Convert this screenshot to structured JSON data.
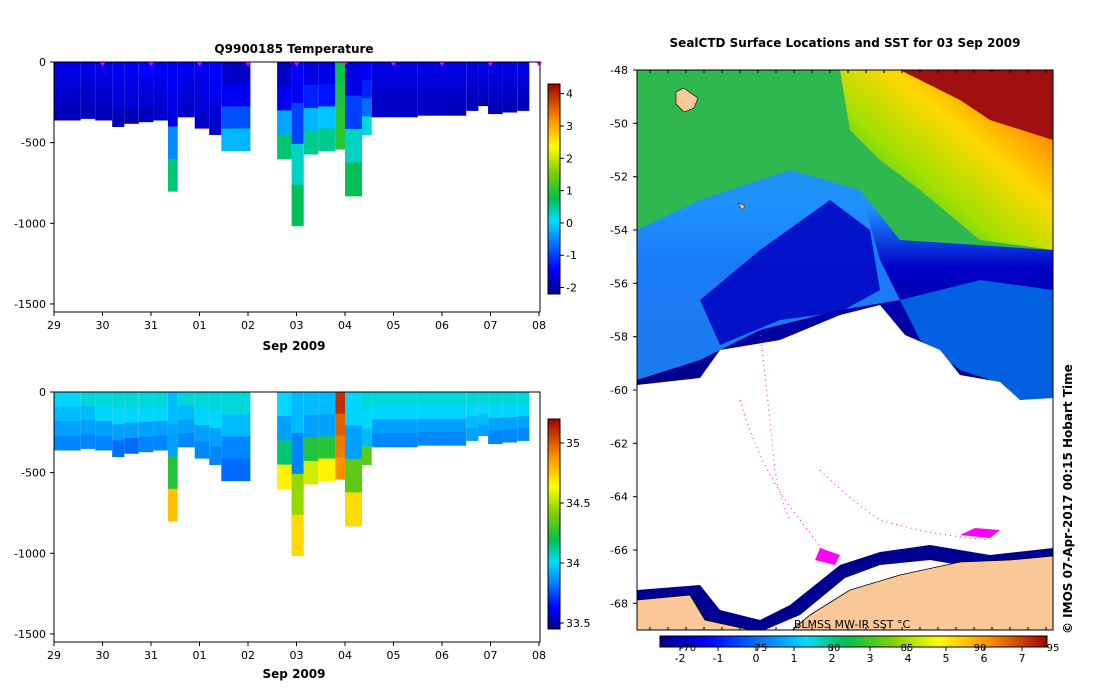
{
  "chart_data": [
    {
      "type": "heatmap",
      "title": "Q9900185  Temperature",
      "xlabel": "Sep 2009",
      "x_tick_labels": [
        "29",
        "30",
        "31",
        "01",
        "02",
        "03",
        "04",
        "05",
        "06",
        "07",
        "08"
      ],
      "y_tick_labels": [
        "0",
        "-500",
        "-1000",
        "-1500"
      ],
      "y_ticks": [
        0,
        -500,
        -1000,
        -1500
      ],
      "ylim": [
        -1550,
        0
      ],
      "colorbar_ticks": [
        4,
        3,
        2,
        1,
        0,
        -1,
        -2
      ],
      "colorbar_range": [
        -2.2,
        4.3
      ],
      "profile_markers_days": [
        1,
        2,
        3,
        4,
        5,
        6,
        7,
        8,
        9,
        10
      ],
      "notes": "Cast columns indexed by day offset from Aug 29; values in deg C"
    },
    {
      "type": "heatmap",
      "title": "",
      "xlabel": "Sep 2009",
      "x_tick_labels": [
        "29",
        "30",
        "31",
        "01",
        "02",
        "03",
        "04",
        "05",
        "06",
        "07",
        "08"
      ],
      "y_tick_labels": [
        "0",
        "-500",
        "-1000",
        "-1500"
      ],
      "y_ticks": [
        0,
        -500,
        -1000,
        -1500
      ],
      "ylim": [
        -1550,
        0
      ],
      "colorbar_ticks": [
        "35",
        "34.5",
        "34",
        "33.5"
      ],
      "colorbar_range": [
        33.45,
        35.2
      ],
      "notes": "Salinity, cast columns indexed by day offset from Aug 29"
    },
    {
      "type": "heatmap",
      "title": "SealCTD Surface Locations and SST for 03 Sep 2009",
      "y_tick_labels": [
        "-48",
        "-50",
        "-52",
        "-54",
        "-56",
        "-58",
        "-60",
        "-62",
        "-64",
        "-66",
        "-68"
      ],
      "ylim": [
        -69,
        -48
      ],
      "colorbar_label": "BLMSS MW-IR SST °C",
      "colorbar_c_ticks": [
        "-2",
        "-1",
        "0",
        "1",
        "2",
        "3",
        "4",
        "5",
        "6",
        "7"
      ],
      "colorbar_f_ticks": [
        "-70",
        "75",
        "80",
        "85",
        "90",
        "95"
      ],
      "copyright": "© IMOS 07-Apr-2017 00:15 Hobart Time"
    }
  ],
  "casts": [
    {
      "d": 0.0,
      "w": 0.55,
      "depth": 360,
      "t": [
        -1.6,
        -1.7,
        -1.8,
        -1.9
      ],
      "s": [
        34.05,
        34.0,
        33.95,
        33.9
      ]
    },
    {
      "d": 0.55,
      "w": 0.3,
      "depth": 350,
      "t": [
        -1.6,
        -1.7,
        -1.8,
        -1.9
      ],
      "s": [
        34.1,
        34.0,
        33.95,
        33.9
      ]
    },
    {
      "d": 0.85,
      "w": 0.35,
      "depth": 360,
      "t": [
        -1.6,
        -1.7,
        -1.8,
        -1.9
      ],
      "s": [
        34.1,
        34.05,
        33.95,
        33.9
      ]
    },
    {
      "d": 1.2,
      "w": 0.25,
      "depth": 400,
      "t": [
        -1.5,
        -1.6,
        -1.7,
        -1.9
      ],
      "s": [
        34.1,
        34.05,
        33.95,
        33.85
      ]
    },
    {
      "d": 1.45,
      "w": 0.3,
      "depth": 380,
      "t": [
        -1.5,
        -1.6,
        -1.7,
        -1.9
      ],
      "s": [
        34.1,
        34.05,
        33.95,
        33.85
      ]
    },
    {
      "d": 1.75,
      "w": 0.3,
      "depth": 370,
      "t": [
        -1.4,
        -1.6,
        -1.7,
        -1.9
      ],
      "s": [
        34.1,
        34.05,
        33.95,
        33.9
      ]
    },
    {
      "d": 2.05,
      "w": 0.3,
      "depth": 360,
      "t": [
        -1.5,
        -1.6,
        -1.7,
        -1.8
      ],
      "s": [
        34.1,
        34.05,
        33.95,
        33.9
      ]
    },
    {
      "d": 2.35,
      "w": 0.2,
      "depth": 800,
      "t": [
        -1.5,
        -1.6,
        -0.5,
        0.6
      ],
      "s": [
        34.0,
        33.95,
        34.3,
        34.8
      ]
    },
    {
      "d": 2.55,
      "w": 0.35,
      "depth": 340,
      "t": [
        -1.5,
        -1.6,
        -1.7,
        -1.8
      ],
      "s": [
        34.1,
        34.0,
        33.95,
        33.9
      ]
    },
    {
      "d": 2.9,
      "w": 0.3,
      "depth": 410,
      "t": [
        -1.5,
        -1.6,
        -1.7,
        -1.8
      ],
      "s": [
        34.1,
        34.05,
        33.95,
        33.9
      ]
    },
    {
      "d": 3.2,
      "w": 0.25,
      "depth": 450,
      "t": [
        -1.4,
        -1.5,
        -1.7,
        -1.8
      ],
      "s": [
        34.1,
        34.05,
        33.95,
        33.9
      ]
    },
    {
      "d": 3.45,
      "w": 0.6,
      "depth": 550,
      "t": [
        -1.8,
        -1.5,
        -0.9,
        -0.2
      ],
      "s": [
        34.1,
        34.0,
        33.9,
        33.85
      ]
    },
    {
      "d": 4.6,
      "w": 0.3,
      "depth": 600,
      "t": [
        -1.8,
        -1.5,
        -0.3,
        0.6
      ],
      "s": [
        34.05,
        33.95,
        34.2,
        34.7
      ]
    },
    {
      "d": 4.9,
      "w": 0.25,
      "depth": 1015,
      "t": [
        -1.5,
        -1.0,
        0.3,
        0.7
      ],
      "s": [
        34.0,
        33.9,
        34.5,
        34.75
      ]
    },
    {
      "d": 5.15,
      "w": 0.3,
      "depth": 570,
      "t": [
        -1.6,
        -1.2,
        -0.2,
        0.5
      ],
      "s": [
        34.0,
        33.95,
        34.3,
        34.6
      ]
    },
    {
      "d": 5.45,
      "w": 0.35,
      "depth": 550,
      "t": [
        -1.6,
        -1.3,
        -0.1,
        0.5
      ],
      "s": [
        34.0,
        33.95,
        34.3,
        34.7
      ]
    },
    {
      "d": 5.8,
      "w": 0.2,
      "depth": 540,
      "t": [
        0.8,
        0.9,
        1.0,
        1.0
      ],
      "s": [
        35.1,
        35.0,
        34.95,
        34.9
      ]
    },
    {
      "d": 6.0,
      "w": 0.35,
      "depth": 830,
      "t": [
        -1.6,
        -1.0,
        0.3,
        0.7
      ],
      "s": [
        34.05,
        33.95,
        34.4,
        34.75
      ]
    },
    {
      "d": 6.35,
      "w": 0.2,
      "depth": 450,
      "t": [
        -1.5,
        -1.2,
        -0.7,
        0.2
      ],
      "s": [
        34.1,
        34.05,
        34.0,
        34.4
      ]
    },
    {
      "d": 6.55,
      "w": 0.95,
      "depth": 340,
      "t": [
        -1.6,
        -1.7,
        -1.8,
        -1.8
      ],
      "s": [
        34.1,
        34.05,
        33.95,
        33.9
      ]
    },
    {
      "d": 7.5,
      "w": 0.55,
      "depth": 330,
      "t": [
        -1.6,
        -1.7,
        -1.8,
        -1.8
      ],
      "s": [
        34.1,
        34.05,
        33.95,
        33.9
      ]
    },
    {
      "d": 8.05,
      "w": 0.45,
      "depth": 330,
      "t": [
        -1.6,
        -1.7,
        -1.8,
        -1.9
      ],
      "s": [
        34.1,
        34.05,
        33.95,
        33.9
      ]
    },
    {
      "d": 8.5,
      "w": 0.25,
      "depth": 300,
      "t": [
        -1.6,
        -1.7,
        -1.8,
        -1.9
      ],
      "s": [
        34.1,
        34.05,
        34.0,
        33.95
      ]
    },
    {
      "d": 8.75,
      "w": 0.2,
      "depth": 270,
      "t": [
        -1.6,
        -1.7,
        -1.8,
        -1.9
      ],
      "s": [
        34.1,
        34.05,
        34.0,
        33.95
      ]
    },
    {
      "d": 8.95,
      "w": 0.3,
      "depth": 320,
      "t": [
        -1.6,
        -1.7,
        -1.8,
        -1.9
      ],
      "s": [
        34.1,
        34.05,
        33.95,
        33.9
      ]
    },
    {
      "d": 9.25,
      "w": 0.3,
      "depth": 310,
      "t": [
        -1.6,
        -1.7,
        -1.8,
        -1.9
      ],
      "s": [
        34.1,
        34.05,
        33.95,
        33.9
      ]
    },
    {
      "d": 9.55,
      "w": 0.25,
      "depth": 300,
      "t": [
        -1.6,
        -1.7,
        -1.8,
        -1.9
      ],
      "s": [
        34.1,
        34.05,
        33.95,
        33.9
      ]
    }
  ]
}
